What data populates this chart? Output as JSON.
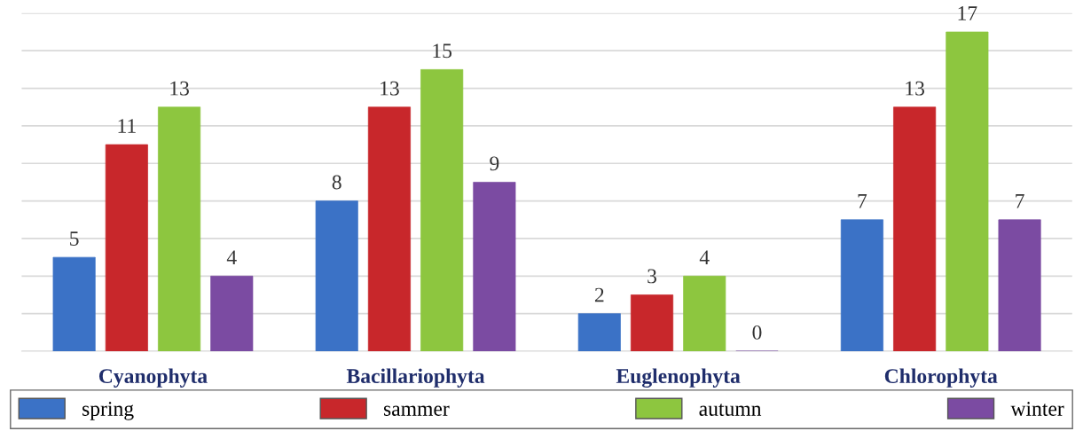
{
  "chart_data": {
    "type": "bar",
    "categories": [
      "Cyanophyta",
      "Bacillariophyta",
      "Euglenophyta",
      "Chlorophyta"
    ],
    "series": [
      {
        "name": "spring",
        "color": "#3b72c6",
        "values": [
          5,
          8,
          2,
          7
        ]
      },
      {
        "name": "sammer",
        "color": "#c8272b",
        "values": [
          11,
          13,
          3,
          13
        ]
      },
      {
        "name": "autumn",
        "color": "#8dc63f",
        "values": [
          13,
          15,
          4,
          17
        ]
      },
      {
        "name": "winter",
        "color": "#7b4ba2",
        "values": [
          4,
          9,
          0,
          7
        ]
      }
    ],
    "ylim": [
      0,
      18
    ],
    "yticks": [
      {
        "value": 0,
        "label": null
      },
      {
        "value": 2,
        "label": null
      },
      {
        "value": 4,
        "label": null
      },
      {
        "value": 6,
        "label": null
      },
      {
        "value": 8,
        "label": null
      },
      {
        "value": 10,
        "label": null
      },
      {
        "value": 12,
        "label": null
      },
      {
        "value": 14,
        "label": null
      },
      {
        "value": 16,
        "label": null
      },
      {
        "value": 18,
        "label": null
      }
    ],
    "tick_labels": "x",
    "grid": "y",
    "legend": "bottom",
    "data_labels": true
  }
}
